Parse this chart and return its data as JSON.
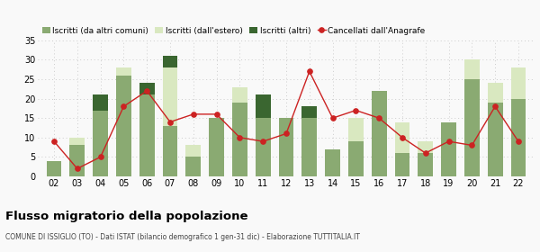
{
  "years": [
    "02",
    "03",
    "04",
    "05",
    "06",
    "07",
    "08",
    "09",
    "10",
    "11",
    "12",
    "13",
    "14",
    "15",
    "16",
    "17",
    "18",
    "19",
    "20",
    "21",
    "22"
  ],
  "iscritti_altri_comuni": [
    4,
    8,
    17,
    26,
    21,
    13,
    5,
    15,
    19,
    15,
    15,
    15,
    7,
    9,
    22,
    6,
    6,
    14,
    25,
    19,
    20
  ],
  "iscritti_estero": [
    0,
    2,
    0,
    2,
    0,
    15,
    3,
    0,
    4,
    0,
    0,
    0,
    0,
    6,
    0,
    8,
    3,
    0,
    5,
    5,
    8
  ],
  "iscritti_altri": [
    0,
    0,
    4,
    0,
    3,
    3,
    0,
    0,
    0,
    6,
    0,
    3,
    0,
    0,
    0,
    0,
    0,
    0,
    0,
    0,
    0
  ],
  "cancellati": [
    9,
    2,
    5,
    18,
    22,
    14,
    16,
    16,
    10,
    9,
    11,
    27,
    15,
    17,
    15,
    10,
    6,
    9,
    8,
    18,
    9
  ],
  "color_altri_comuni": "#8aaa72",
  "color_estero": "#d9e8c0",
  "color_altri": "#3a6630",
  "color_cancellati": "#cc2222",
  "title": "Flusso migratorio della popolazione",
  "subtitle": "COMUNE DI ISSIGLIO (TO) - Dati ISTAT (bilancio demografico 1 gen-31 dic) - Elaborazione TUTTITALIA.IT",
  "legend_labels": [
    "Iscritti (da altri comuni)",
    "Iscritti (dall'estero)",
    "Iscritti (altri)",
    "Cancellati dall'Anagrafe"
  ],
  "ylim": [
    0,
    35
  ],
  "yticks": [
    0,
    5,
    10,
    15,
    20,
    25,
    30,
    35
  ],
  "background_color": "#f9f9f9",
  "grid_color": "#cccccc"
}
